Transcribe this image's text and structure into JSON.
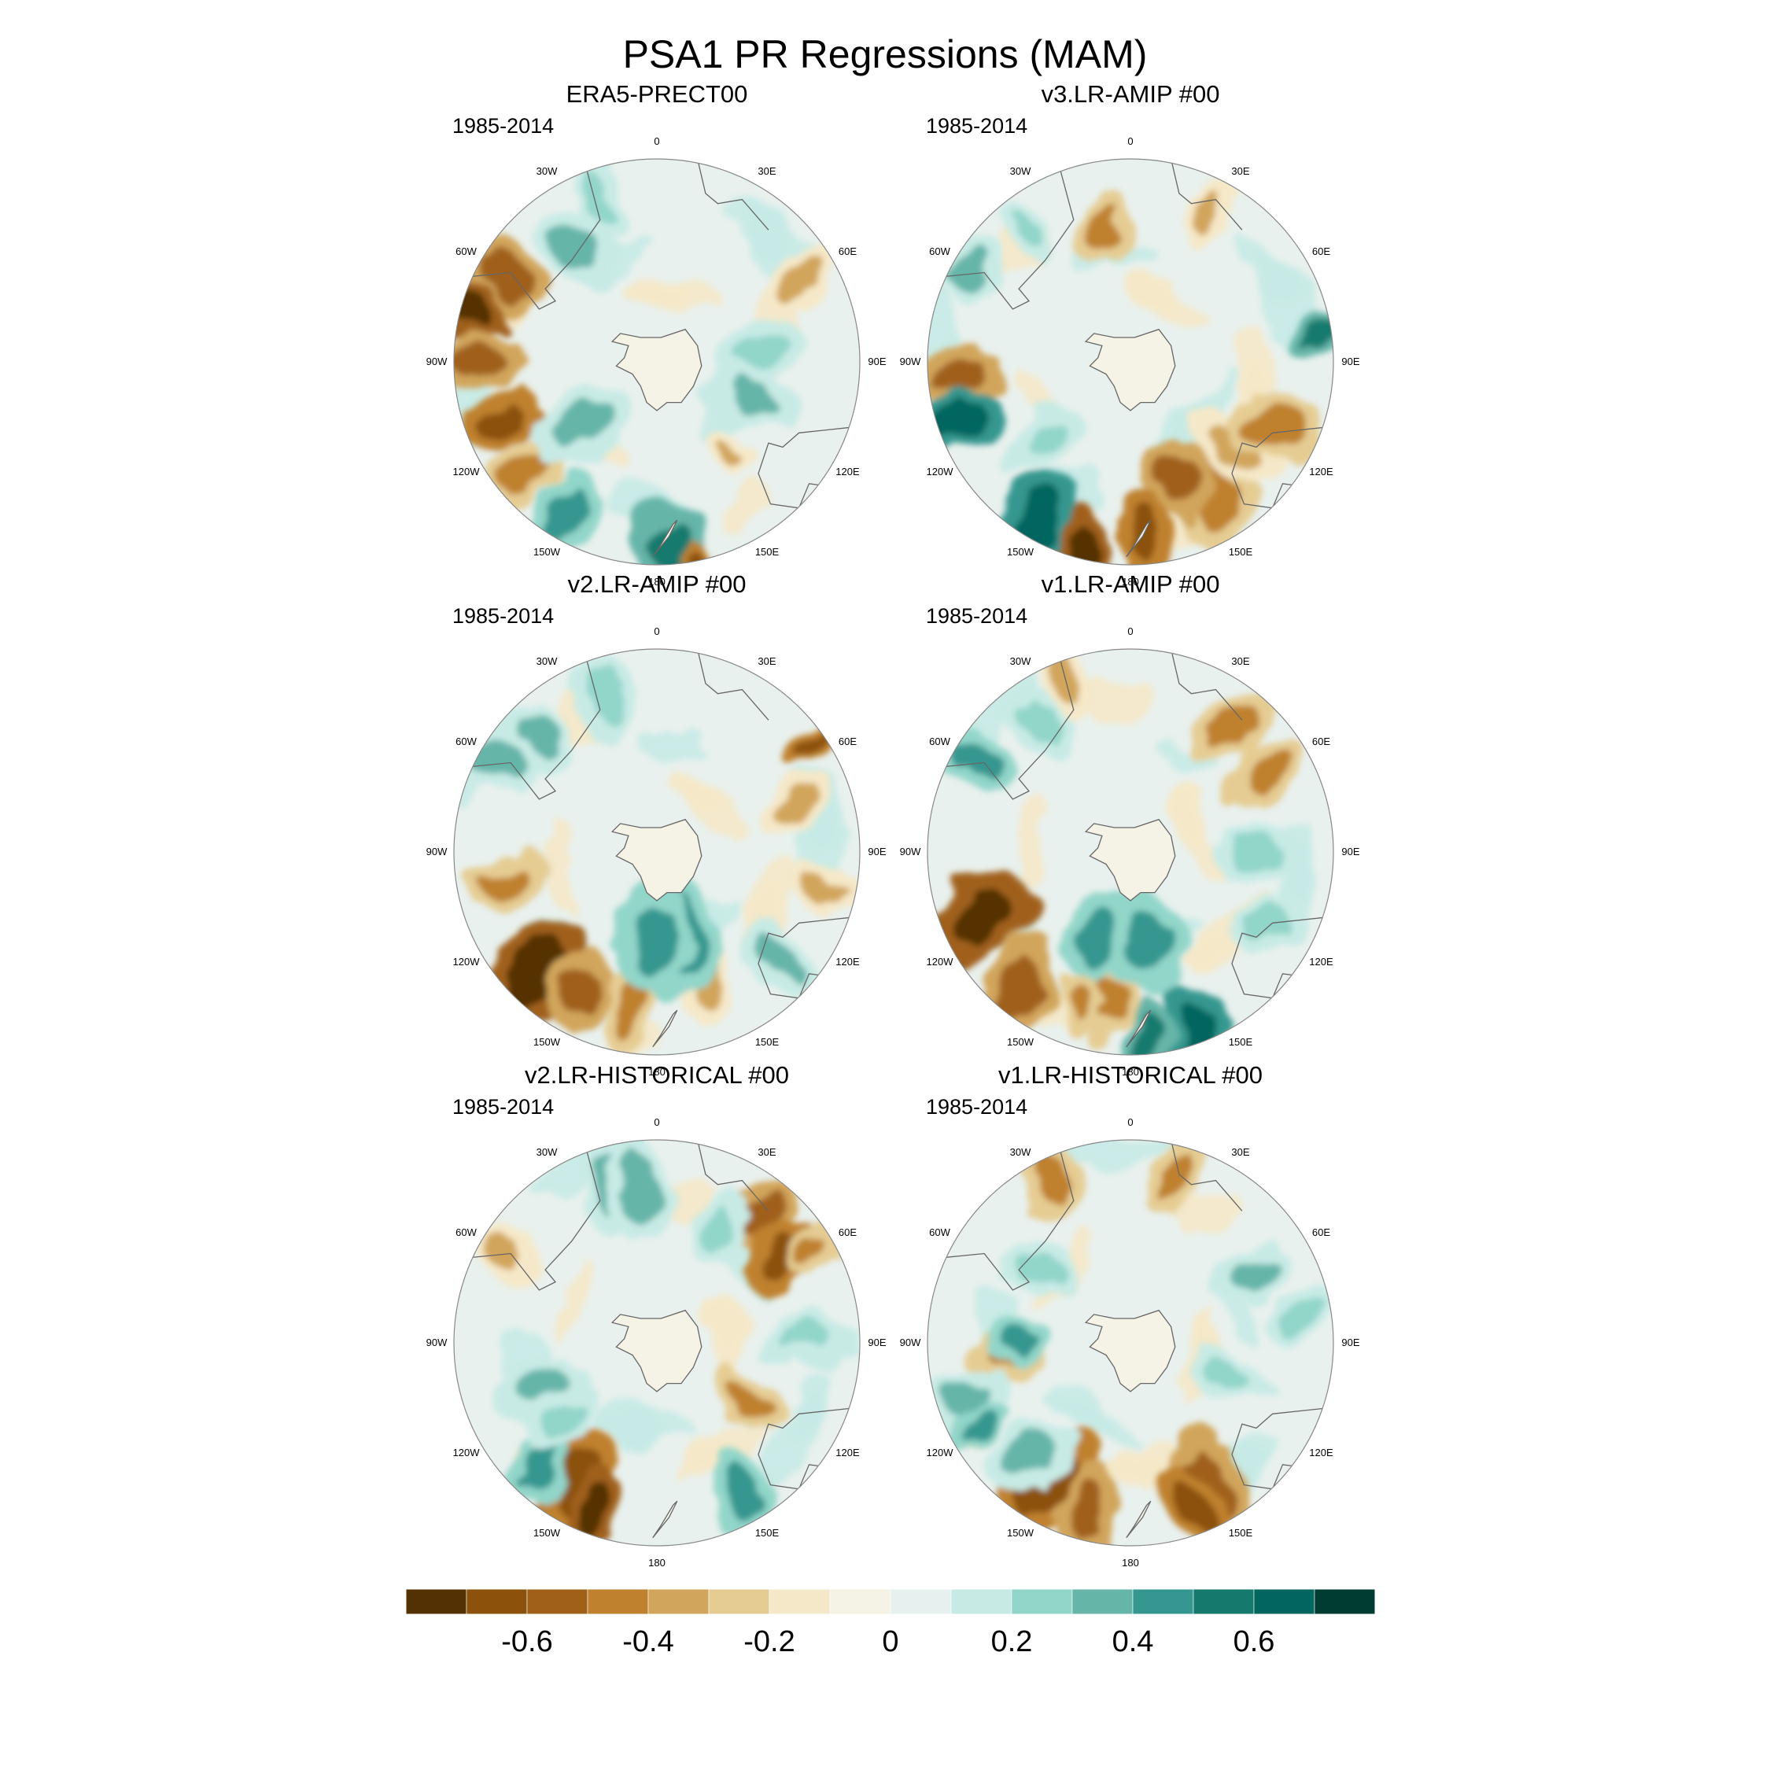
{
  "title": "PSA1 PR Regressions (MAM)",
  "lon_labels": {
    "0": "0",
    "30E": "30E",
    "60E": "60E",
    "90E": "90E",
    "120E": "120E",
    "150E": "150E",
    "180": "180",
    "150W": "150W",
    "120W": "120W",
    "90W": "90W",
    "60W": "60W",
    "30W": "30W"
  },
  "panels": [
    {
      "title": "ERA5-PRECT00",
      "period": "1985-2014"
    },
    {
      "title": "v3.LR-AMIP  #00",
      "period": "1985-2014"
    },
    {
      "title": "v2.LR-AMIP  #00",
      "period": "1985-2014"
    },
    {
      "title": "v1.LR-AMIP  #00",
      "period": "1985-2014"
    },
    {
      "title": "v2.LR-HISTORICAL  #00",
      "period": "1985-2014"
    },
    {
      "title": "v1.LR-HISTORICAL  #00",
      "period": "1985-2014"
    }
  ],
  "colorbar": {
    "colors": [
      "#543005",
      "#8c510a",
      "#a0601a",
      "#bf812d",
      "#d1a55c",
      "#e5cc93",
      "#f5e8c8",
      "#f5f2e6",
      "#e6f0ee",
      "#c7eae5",
      "#92d5c9",
      "#66b5a9",
      "#35978f",
      "#147a6e",
      "#01665e",
      "#003c30"
    ],
    "tick_labels": [
      "-0.6",
      "-0.4",
      "-0.2",
      "0",
      "0.2",
      "0.4",
      "0.6"
    ]
  },
  "map": {
    "projection": "south polar stereographic",
    "coastline_color": "#666666",
    "land_color": "#f5f2e6"
  }
}
